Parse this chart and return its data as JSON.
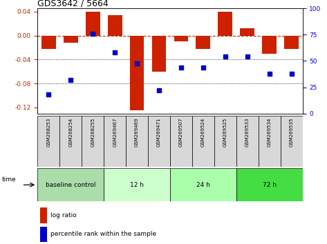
{
  "title": "GDS3642 / 5664",
  "samples": [
    "GSM268253",
    "GSM268254",
    "GSM268255",
    "GSM269467",
    "GSM269469",
    "GSM269471",
    "GSM269507",
    "GSM269524",
    "GSM269525",
    "GSM269533",
    "GSM269534",
    "GSM269535"
  ],
  "log_ratio": [
    -0.022,
    -0.012,
    0.04,
    0.034,
    -0.125,
    -0.06,
    -0.01,
    -0.022,
    0.04,
    0.012,
    -0.03,
    -0.022
  ],
  "percentile_rank": [
    18,
    32,
    76,
    58,
    48,
    22,
    44,
    44,
    54,
    54,
    38,
    38
  ],
  "groups": [
    {
      "label": "baseline control",
      "start": 0,
      "end": 3,
      "color": "#aaddaa"
    },
    {
      "label": "12 h",
      "start": 3,
      "end": 6,
      "color": "#ccffcc"
    },
    {
      "label": "24 h",
      "start": 6,
      "end": 9,
      "color": "#aaffaa"
    },
    {
      "label": "72 h",
      "start": 9,
      "end": 12,
      "color": "#44dd44"
    }
  ],
  "bar_color": "#cc2200",
  "dot_color": "#0000cc",
  "ylim_left": [
    -0.13,
    0.045
  ],
  "ylim_right": [
    0,
    100
  ],
  "yticks_left": [
    0.04,
    0.0,
    -0.04,
    -0.08,
    -0.12
  ],
  "yticks_right": [
    100,
    75,
    50,
    25,
    0
  ],
  "background_color": "#ffffff"
}
